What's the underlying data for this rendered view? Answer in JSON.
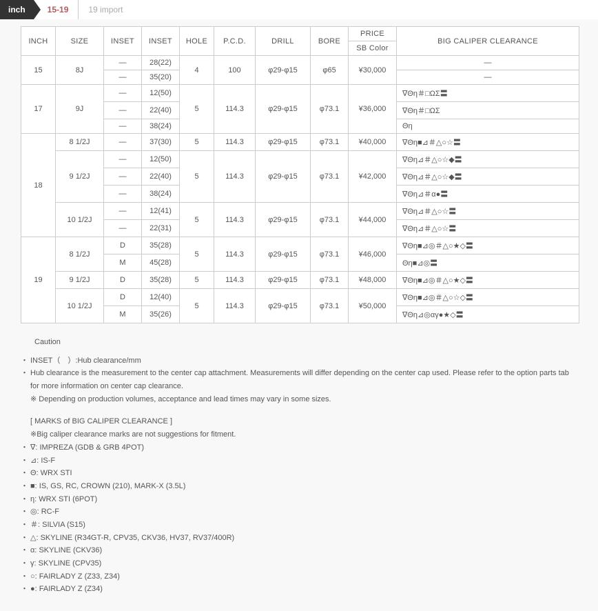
{
  "tabs": {
    "inch_label": "inch",
    "active": "15-19",
    "inactive": "19 import"
  },
  "headers": {
    "inch": "INCH",
    "size": "SIZE",
    "inset1": "INSET",
    "inset2": "INSET",
    "hole": "HOLE",
    "pcd": "P.C.D.",
    "drill": "DRILL",
    "bore": "BORE",
    "price": "PRICE",
    "sbcolor": "SB Color",
    "clearance": "BIG CALIPER CLEARANCE"
  },
  "rows": [
    {
      "inch": "15",
      "inch_rs": 2,
      "size": "8J",
      "size_rs": 2,
      "inset1": "—",
      "inset2": "28(22)",
      "hole": "4",
      "hole_rs": 2,
      "pcd": "100",
      "pcd_rs": 2,
      "drill": "φ29-φ15",
      "drill_rs": 2,
      "bore": "φ65",
      "bore_rs": 2,
      "price": "¥30,000",
      "price_rs": 2,
      "clear": "—",
      "clear_align": "center"
    },
    {
      "inset1": "—",
      "inset2": "35(20)",
      "clear": "—",
      "clear_align": "center"
    },
    {
      "inch": "17",
      "inch_rs": 3,
      "size": "9J",
      "size_rs": 3,
      "inset1": "—",
      "inset2": "12(50)",
      "hole": "5",
      "hole_rs": 3,
      "pcd": "114.3",
      "pcd_rs": 3,
      "drill": "φ29-φ15",
      "drill_rs": 3,
      "bore": "φ73.1",
      "bore_rs": 3,
      "price": "¥36,000",
      "price_rs": 3,
      "clear": "∇Θη＃□ΩΣ〓"
    },
    {
      "inset1": "—",
      "inset2": "22(40)",
      "clear": "∇Θη＃□ΩΣ"
    },
    {
      "inset1": "—",
      "inset2": "38(24)",
      "clear": "Θη"
    },
    {
      "inch": "18",
      "inch_rs": 6,
      "size": "8 1/2J",
      "size_rs": 1,
      "inset1": "—",
      "inset2": "37(30)",
      "hole": "5",
      "hole_rs": 1,
      "pcd": "114.3",
      "pcd_rs": 1,
      "drill": "φ29-φ15",
      "drill_rs": 1,
      "bore": "φ73.1",
      "bore_rs": 1,
      "price": "¥40,000",
      "price_rs": 1,
      "clear": "∇Θη■⊿＃△○☆〓"
    },
    {
      "size": "9 1/2J",
      "size_rs": 3,
      "inset1": "—",
      "inset2": "12(50)",
      "hole": "5",
      "hole_rs": 3,
      "pcd": "114.3",
      "pcd_rs": 3,
      "drill": "φ29-φ15",
      "drill_rs": 3,
      "bore": "φ73.1",
      "bore_rs": 3,
      "price": "¥42,000",
      "price_rs": 3,
      "clear": "∇Θη⊿＃△○☆◆〓"
    },
    {
      "inset1": "—",
      "inset2": "22(40)",
      "clear": "∇Θη⊿＃△○☆◆〓"
    },
    {
      "inset1": "—",
      "inset2": "38(24)",
      "clear": "∇Θη⊿＃α●〓"
    },
    {
      "size": "10 1/2J",
      "size_rs": 2,
      "inset1": "—",
      "inset2": "12(41)",
      "hole": "5",
      "hole_rs": 2,
      "pcd": "114.3",
      "pcd_rs": 2,
      "drill": "φ29-φ15",
      "drill_rs": 2,
      "bore": "φ73.1",
      "bore_rs": 2,
      "price": "¥44,000",
      "price_rs": 2,
      "clear": "∇Θη⊿＃△○☆〓"
    },
    {
      "inset1": "—",
      "inset2": "22(31)",
      "clear": "∇Θη⊿＃△○☆〓"
    },
    {
      "inch": "19",
      "inch_rs": 5,
      "size": "8 1/2J",
      "size_rs": 2,
      "inset1": "D",
      "inset2": "35(28)",
      "hole": "5",
      "hole_rs": 2,
      "pcd": "114.3",
      "pcd_rs": 2,
      "drill": "φ29-φ15",
      "drill_rs": 2,
      "bore": "φ73.1",
      "bore_rs": 2,
      "price": "¥46,000",
      "price_rs": 2,
      "clear": "∇Θη■⊿◎＃△○★◇〓"
    },
    {
      "inset1": "M",
      "inset2": "45(28)",
      "clear": "Θη■⊿◎〓"
    },
    {
      "size": "9 1/2J",
      "size_rs": 1,
      "inset1": "D",
      "inset2": "35(28)",
      "hole": "5",
      "hole_rs": 1,
      "pcd": "114.3",
      "pcd_rs": 1,
      "drill": "φ29-φ15",
      "drill_rs": 1,
      "bore": "φ73.1",
      "bore_rs": 1,
      "price": "¥48,000",
      "price_rs": 1,
      "clear": "∇Θη■⊿◎＃△○★◇〓"
    },
    {
      "size": "10 1/2J",
      "size_rs": 2,
      "inset1": "D",
      "inset2": "12(40)",
      "hole": "5",
      "hole_rs": 2,
      "pcd": "114.3",
      "pcd_rs": 2,
      "drill": "φ29-φ15",
      "drill_rs": 2,
      "bore": "φ73.1",
      "bore_rs": 2,
      "price": "¥50,000",
      "price_rs": 2,
      "clear": "∇Θη■⊿◎＃△○☆◇〓"
    },
    {
      "inset1": "M",
      "inset2": "35(26)",
      "clear": "∇Θη⊿◎αγ●★◇〓"
    }
  ],
  "col_widths": [
    "50",
    "70",
    "55",
    "55",
    "50",
    "60",
    "80",
    "55",
    "70",
    "265"
  ],
  "caution": {
    "title": "Caution",
    "lines": [
      "INSET（　）:Hub clearance/mm",
      "Hub clearance is the measurement to the center cap attachment. Measurements will differ depending on the center cap used. Please refer to the option parts tab for more information on center cap clearance.",
      "※ Depending on production volumes, acceptance and lead times may vary in some sizes."
    ],
    "marks_title": "[ MARKS of BIG CALIPER CLEARANCE ]",
    "marks_note": "※Big caliper clearance marks are not suggestions for fitment.",
    "marks": [
      "∇: IMPREZA (GDB & GRB 4POT)",
      "⊿: IS-F",
      "Θ: WRX STI",
      "■: IS, GS, RC, CROWN (210), MARK-X (3.5L)",
      "η: WRX STI (6POT)",
      "◎: RC-F",
      "＃: SILVIA (S15)",
      "△: SKYLINE (R34GT-R, CPV35, CKV36, HV37, RV37/400R)",
      "α: SKYLINE (CKV36)",
      "γ: SKYLINE (CPV35)",
      "○: FAIRLADY Z (Z33, Z34)",
      "●: FAIRLADY Z (Z34)"
    ]
  }
}
